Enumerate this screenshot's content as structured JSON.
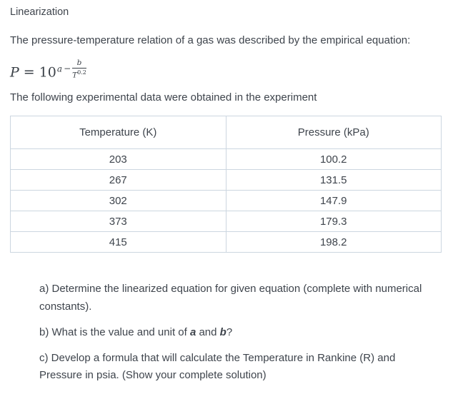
{
  "page": {
    "title": "Linearization",
    "intro": "The pressure-temperature relation of a gas was described by the empirical equation:",
    "data_note": "The following experimental data were obtained in the experiment"
  },
  "formula": {
    "p": "P",
    "eq": "=",
    "base": "10",
    "exp_a": "a",
    "exp_minus": "−",
    "frac_numerator": "b",
    "frac_denominator_base": "T",
    "frac_denominator_exp": "0.2"
  },
  "table": {
    "headers": [
      "Temperature (K)",
      "Pressure (kPa)"
    ],
    "rows": [
      [
        "203",
        "100.2"
      ],
      [
        "267",
        "131.5"
      ],
      [
        "302",
        "147.9"
      ],
      [
        "373",
        "179.3"
      ],
      [
        "415",
        "198.2"
      ]
    ]
  },
  "questions": {
    "a": "a) Determine the linearized equation for given equation (complete with numerical constants).",
    "b_prefix": "b) What is the value and unit of ",
    "b_var1": "a",
    "b_and": " and ",
    "b_var2": "b",
    "b_suffix": "?",
    "c": "c) Develop a formula that will calculate the Temperature in Rankine (R) and Pressure in psia. (Show your complete solution)"
  }
}
